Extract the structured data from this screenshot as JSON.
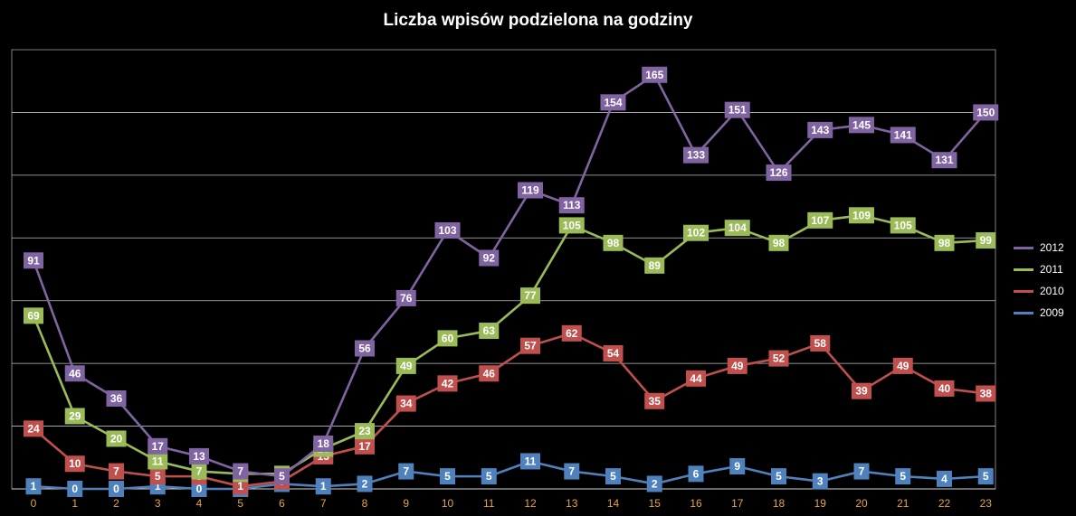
{
  "chart_data": {
    "type": "line",
    "title": "Liczba wpisów podzielona na godziny",
    "xlabel": "",
    "ylabel": "",
    "x": [
      0,
      1,
      2,
      3,
      4,
      5,
      6,
      7,
      8,
      9,
      10,
      11,
      12,
      13,
      14,
      15,
      16,
      17,
      18,
      19,
      20,
      21,
      22,
      23
    ],
    "x_tick_labels": [
      "0",
      "1",
      "2",
      "3",
      "4",
      "5",
      "6",
      "7",
      "8",
      "9",
      "10",
      "11",
      "12",
      "13",
      "14",
      "15",
      "16",
      "17",
      "18",
      "19",
      "20",
      "21",
      "22",
      "23"
    ],
    "ylim": [
      0,
      175
    ],
    "grid": true,
    "legend_position": "right",
    "series": [
      {
        "name": "2012",
        "color": "#8064a2",
        "values": [
          91,
          46,
          36,
          17,
          13,
          7,
          5,
          18,
          56,
          76,
          103,
          92,
          119,
          113,
          154,
          165,
          133,
          151,
          126,
          143,
          145,
          141,
          131,
          150
        ]
      },
      {
        "name": "2011",
        "color": "#9bbb59",
        "values": [
          69,
          29,
          20,
          11,
          7,
          6,
          6,
          16,
          23,
          49,
          60,
          63,
          77,
          105,
          98,
          89,
          102,
          104,
          98,
          107,
          109,
          105,
          98,
          99
        ]
      },
      {
        "name": "2010",
        "color": "#c0504d",
        "values": [
          24,
          10,
          7,
          5,
          5,
          1,
          3,
          13,
          17,
          34,
          42,
          46,
          57,
          62,
          54,
          35,
          44,
          49,
          52,
          58,
          39,
          49,
          40,
          38
        ]
      },
      {
        "name": "2009",
        "color": "#4f81bd",
        "values": [
          1,
          0,
          0,
          1,
          0,
          0,
          2,
          1,
          2,
          7,
          5,
          5,
          11,
          7,
          5,
          2,
          6,
          9,
          5,
          3,
          7,
          5,
          4,
          5
        ]
      }
    ]
  }
}
